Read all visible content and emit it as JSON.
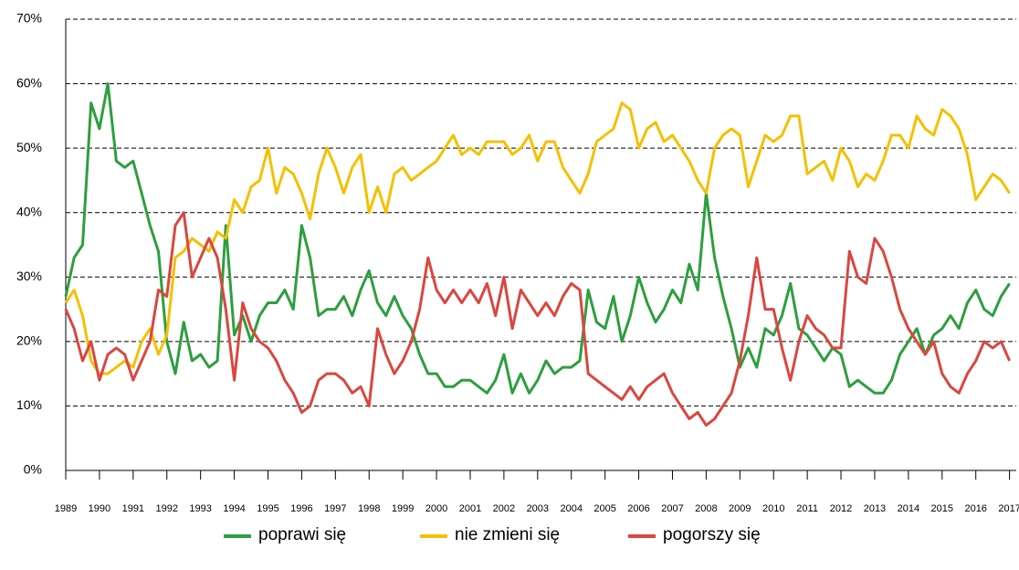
{
  "chart_data": {
    "type": "line",
    "x": [
      1989,
      1989.25,
      1989.5,
      1989.75,
      1990,
      1990.25,
      1990.5,
      1990.75,
      1991,
      1991.25,
      1991.5,
      1991.75,
      1992,
      1992.25,
      1992.5,
      1992.75,
      1993,
      1993.25,
      1993.5,
      1993.75,
      1994,
      1994.25,
      1994.5,
      1994.75,
      1995,
      1995.25,
      1995.5,
      1995.75,
      1996,
      1996.25,
      1996.5,
      1996.75,
      1997,
      1997.25,
      1997.5,
      1997.75,
      1998,
      1998.25,
      1998.5,
      1998.75,
      1999,
      1999.25,
      1999.5,
      1999.75,
      2000,
      2000.25,
      2000.5,
      2000.75,
      2001,
      2001.25,
      2001.5,
      2001.75,
      2002,
      2002.25,
      2002.5,
      2002.75,
      2003,
      2003.25,
      2003.5,
      2003.75,
      2004,
      2004.25,
      2004.5,
      2004.75,
      2005,
      2005.25,
      2005.5,
      2005.75,
      2006,
      2006.25,
      2006.5,
      2006.75,
      2007,
      2007.25,
      2007.5,
      2007.75,
      2008,
      2008.25,
      2008.5,
      2008.75,
      2009,
      2009.25,
      2009.5,
      2009.75,
      2010,
      2010.25,
      2010.5,
      2010.75,
      2011,
      2011.25,
      2011.5,
      2011.75,
      2012,
      2012.25,
      2012.5,
      2012.75,
      2013,
      2013.25,
      2013.5,
      2013.75,
      2014,
      2014.25,
      2014.5,
      2014.75,
      2015,
      2015.25,
      2015.5,
      2015.75,
      2016,
      2016.25,
      2016.5,
      2016.75,
      2017
    ],
    "series": [
      {
        "name": "poprawi się",
        "color": "#2e9e3e",
        "values": [
          27,
          33,
          35,
          57,
          53,
          60,
          48,
          47,
          48,
          43,
          38,
          34,
          20,
          15,
          23,
          17,
          18,
          16,
          17,
          38,
          21,
          24,
          20,
          24,
          26,
          26,
          28,
          25,
          38,
          33,
          24,
          25,
          25,
          27,
          24,
          28,
          31,
          26,
          24,
          27,
          24,
          22,
          18,
          15,
          15,
          13,
          13,
          14,
          14,
          13,
          12,
          14,
          18,
          12,
          15,
          12,
          14,
          17,
          15,
          16,
          16,
          17,
          28,
          23,
          22,
          27,
          20,
          24,
          30,
          26,
          23,
          25,
          28,
          26,
          32,
          28,
          43,
          33,
          27,
          22,
          16,
          19,
          16,
          22,
          21,
          24,
          29,
          22,
          21,
          19,
          17,
          19,
          18,
          13,
          14,
          13,
          12,
          12,
          14,
          18,
          20,
          22,
          18,
          21,
          22,
          24,
          22,
          26,
          28,
          25,
          24,
          27,
          29
        ]
      },
      {
        "name": "nie zmieni się",
        "color": "#f4c000",
        "values": [
          26,
          28,
          24,
          17,
          15,
          15,
          16,
          17,
          16,
          20,
          22,
          18,
          21,
          33,
          34,
          36,
          35,
          34,
          37,
          36,
          42,
          40,
          44,
          45,
          50,
          43,
          47,
          46,
          43,
          39,
          46,
          50,
          47,
          43,
          47,
          49,
          40,
          44,
          40,
          46,
          47,
          45,
          46,
          47,
          48,
          50,
          52,
          49,
          50,
          49,
          51,
          51,
          51,
          49,
          50,
          52,
          48,
          51,
          51,
          47,
          45,
          43,
          46,
          51,
          52,
          53,
          57,
          56,
          50,
          53,
          54,
          51,
          52,
          50,
          48,
          45,
          43,
          50,
          52,
          53,
          52,
          44,
          48,
          52,
          51,
          52,
          55,
          55,
          46,
          47,
          48,
          45,
          50,
          48,
          44,
          46,
          45,
          48,
          52,
          52,
          50,
          55,
          53,
          52,
          56,
          55,
          53,
          49,
          42,
          44,
          46,
          45,
          43
        ]
      },
      {
        "name": "pogorszy się",
        "color": "#d9473f",
        "values": [
          25,
          22,
          17,
          20,
          14,
          18,
          19,
          18,
          14,
          17,
          20,
          28,
          27,
          38,
          40,
          30,
          33,
          36,
          33,
          25,
          14,
          26,
          22,
          20,
          19,
          17,
          14,
          12,
          9,
          10,
          14,
          15,
          15,
          14,
          12,
          13,
          10,
          22,
          18,
          15,
          17,
          20,
          25,
          33,
          28,
          26,
          28,
          26,
          28,
          26,
          29,
          24,
          30,
          22,
          28,
          26,
          24,
          26,
          24,
          27,
          29,
          28,
          15,
          14,
          13,
          12,
          11,
          13,
          11,
          13,
          14,
          15,
          12,
          10,
          8,
          9,
          7,
          8,
          10,
          12,
          17,
          24,
          33,
          25,
          25,
          19,
          14,
          20,
          24,
          22,
          21,
          19,
          19,
          34,
          30,
          29,
          36,
          34,
          30,
          25,
          22,
          20,
          18,
          20,
          15,
          13,
          12,
          15,
          17,
          20,
          19,
          20,
          17
        ]
      }
    ],
    "xlim": [
      1989,
      2017.2
    ],
    "xticks": [
      1989,
      1990,
      1991,
      1992,
      1993,
      1994,
      1995,
      1996,
      1997,
      1998,
      1999,
      2000,
      2001,
      2002,
      2003,
      2004,
      2005,
      2006,
      2007,
      2008,
      2009,
      2010,
      2011,
      2012,
      2013,
      2014,
      2015,
      2016,
      2017
    ],
    "ylim": [
      0,
      70
    ],
    "yticks": [
      {
        "value": 0,
        "label": "0%"
      },
      {
        "value": 10,
        "label": "10%"
      },
      {
        "value": 20,
        "label": "20%"
      },
      {
        "value": 30,
        "label": "30%"
      },
      {
        "value": 40,
        "label": "40%"
      },
      {
        "value": 50,
        "label": "50%"
      },
      {
        "value": 60,
        "label": "60%"
      },
      {
        "value": 70,
        "label": "70%"
      }
    ],
    "grid": true
  }
}
